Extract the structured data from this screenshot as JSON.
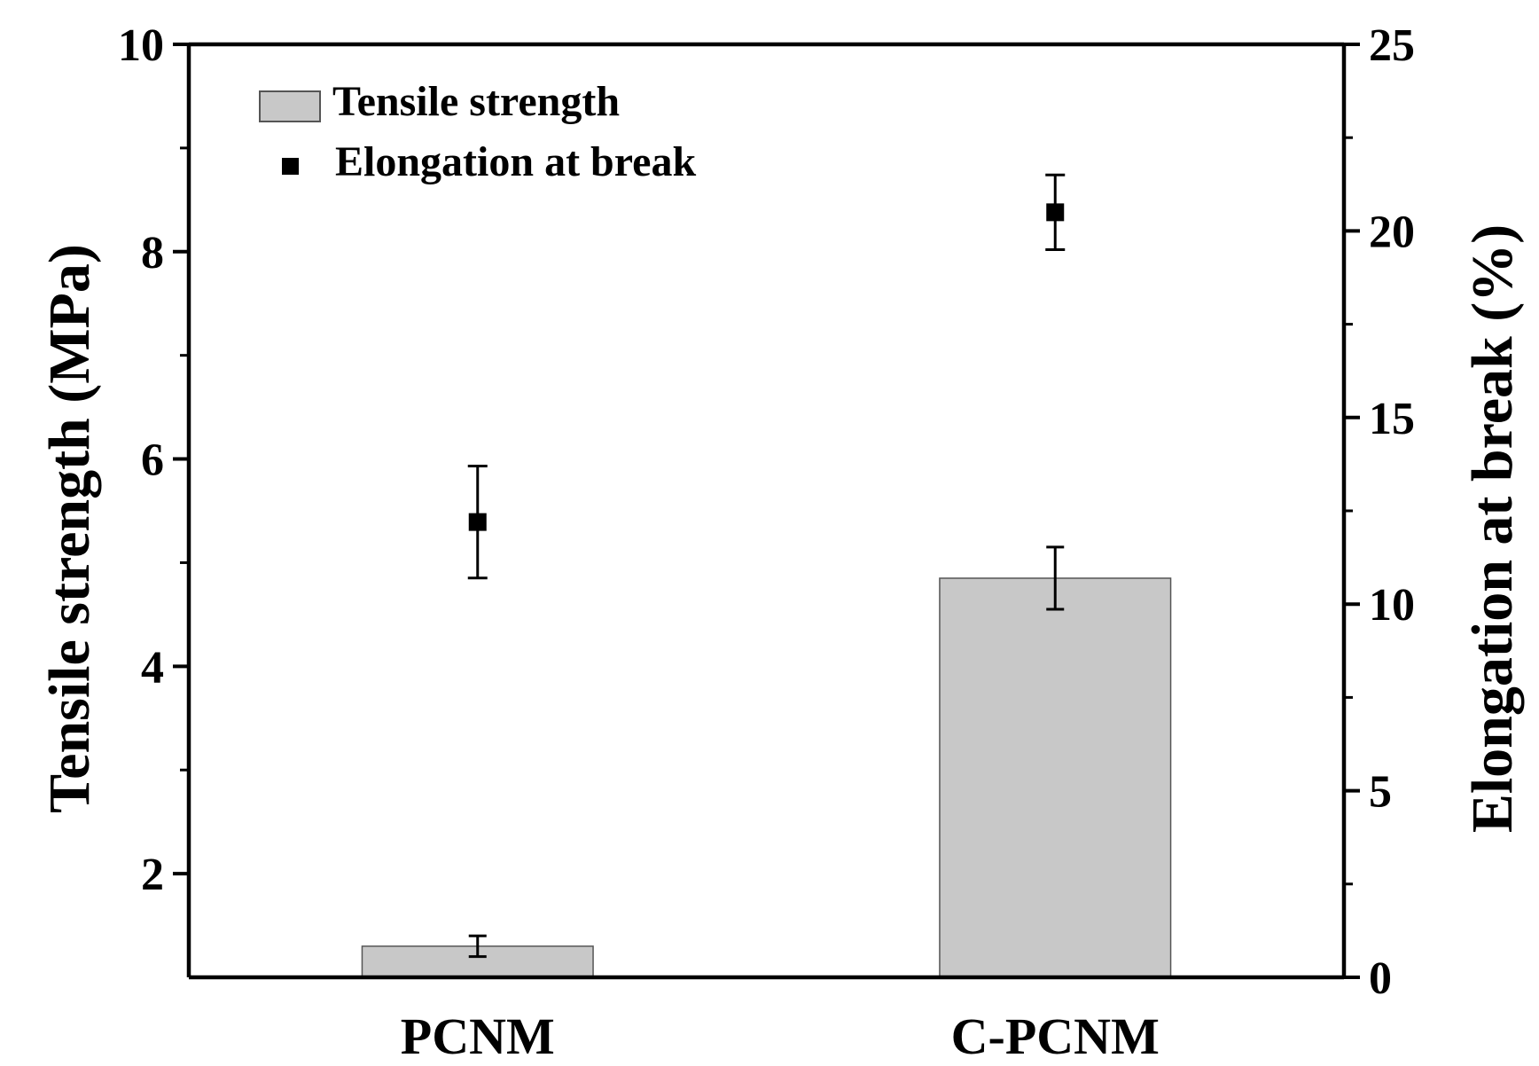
{
  "chart_data": {
    "type": "bar",
    "categories": [
      "PCNM",
      "C-PCNM"
    ],
    "series": [
      {
        "name": "Tensile strength",
        "kind": "bar",
        "axis": "left",
        "values": [
          1.3,
          4.85
        ],
        "errors": [
          0.1,
          0.3
        ],
        "color": "#c8c8c8"
      },
      {
        "name": "Elongation at break",
        "kind": "point",
        "axis": "right",
        "values": [
          12.2,
          20.5
        ],
        "errors": [
          1.5,
          1.0
        ],
        "color": "#000000"
      }
    ],
    "left_axis": {
      "label": "Tensile strength (MPa)",
      "ylim": [
        1,
        10
      ],
      "ticks": [
        2,
        4,
        6,
        8,
        10
      ]
    },
    "right_axis": {
      "label": "Elongation at break (%)",
      "ylim": [
        0,
        25
      ],
      "ticks": [
        0,
        5,
        10,
        15,
        20,
        25
      ]
    },
    "legend": {
      "position": "top-left"
    },
    "grid": false
  }
}
